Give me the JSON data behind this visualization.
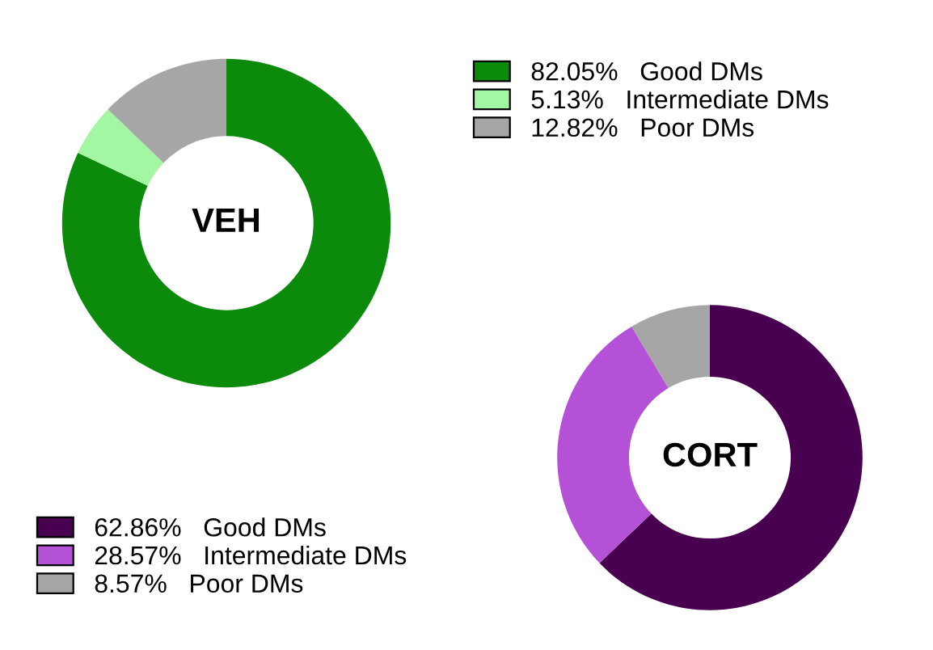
{
  "chart_data": [
    {
      "type": "donut",
      "title": "VEH",
      "categories": [
        "Good DMs",
        "Intermediate DMs",
        "Poor DMs"
      ],
      "values": [
        82.05,
        5.13,
        12.82
      ],
      "value_labels": [
        "82.05%",
        "5.13%",
        "12.82%"
      ],
      "colors": [
        "#0b8a0b",
        "#a3f7a3",
        "#a6a6a6"
      ],
      "legend": "top right"
    },
    {
      "type": "donut",
      "title": "CORT",
      "categories": [
        "Good DMs",
        "Intermediate DMs",
        "Poor DMs"
      ],
      "values": [
        62.86,
        28.57,
        8.57
      ],
      "value_labels": [
        "62.86%",
        "28.57%",
        "8.57%"
      ],
      "colors": [
        "#4a0050",
        "#b451d6",
        "#a6a6a6"
      ],
      "legend": "bottom left"
    }
  ]
}
